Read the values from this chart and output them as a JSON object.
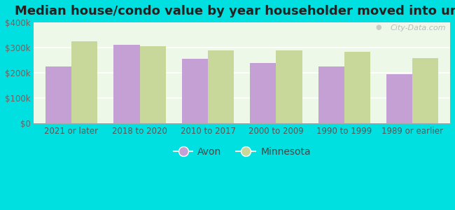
{
  "title": "Median house/condo value by year householder moved into unit",
  "categories": [
    "2021 or later",
    "2018 to 2020",
    "2010 to 2017",
    "2000 to 2009",
    "1990 to 1999",
    "1989 or earlier"
  ],
  "avon_values": [
    225000,
    310000,
    255000,
    240000,
    225000,
    195000
  ],
  "minnesota_values": [
    325000,
    305000,
    290000,
    288000,
    283000,
    258000
  ],
  "avon_color": "#c4a0d4",
  "minnesota_color": "#c8d89a",
  "background_color": "#00e0e0",
  "plot_bg_top": "#e8f5e0",
  "plot_bg_bottom": "#f5fdf5",
  "ylim": [
    0,
    400000
  ],
  "yticks": [
    0,
    100000,
    200000,
    300000,
    400000
  ],
  "ytick_labels": [
    "$0",
    "$100k",
    "$200k",
    "$300k",
    "$400k"
  ],
  "bar_width": 0.38,
  "legend_labels": [
    "Avon",
    "Minnesota"
  ],
  "watermark": "City-Data.com",
  "title_fontsize": 13,
  "tick_fontsize": 8.5,
  "legend_fontsize": 10
}
